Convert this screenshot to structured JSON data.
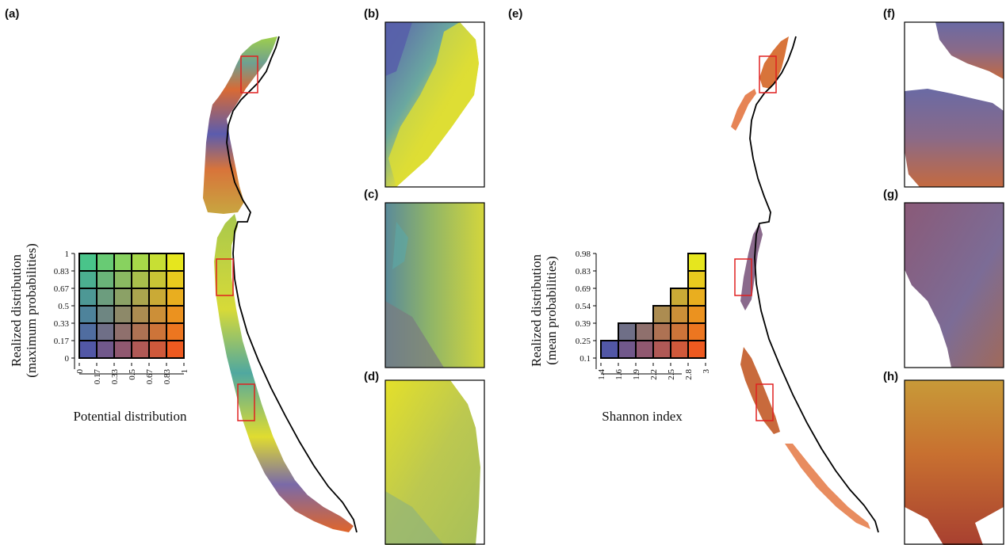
{
  "panels": {
    "a": "(a)",
    "b": "(b)",
    "c": "(c)",
    "d": "(d)",
    "e": "(e)",
    "f": "(f)",
    "g": "(g)",
    "h": "(h)"
  },
  "legend_left": {
    "ylabel_line1": "Realized distribution",
    "ylabel_line2": "(maximum probabilities)",
    "xlabel": "Potential distribution",
    "yticks": [
      "1",
      "0.83",
      "0.67",
      "0.5",
      "0.33",
      "0.17",
      "0"
    ],
    "xticks": [
      "0",
      "0.17",
      "0.33",
      "0.5",
      "0.67",
      "0.83",
      "1"
    ]
  },
  "legend_right": {
    "ylabel_line1": "Realized distribution",
    "ylabel_line2": "(mean probabilities)",
    "xlabel": "Shannon index",
    "yticks": [
      "0.98",
      "0.83",
      "0.69",
      "0.54",
      "0.39",
      "0.25",
      "0.1"
    ],
    "xticks": [
      "1.4",
      "1.6",
      "1.9",
      "2.2",
      "2.5",
      "2.8",
      "3"
    ],
    "column_heights": [
      1,
      2,
      2,
      3,
      4,
      6
    ]
  },
  "colors": {
    "low_low": "#5257a6",
    "high_potential": "#ee5a20",
    "high_realized": "#49c48a",
    "high_both": "#e6e61e",
    "inset_box": "#e02020",
    "coastline": "#000000"
  }
}
